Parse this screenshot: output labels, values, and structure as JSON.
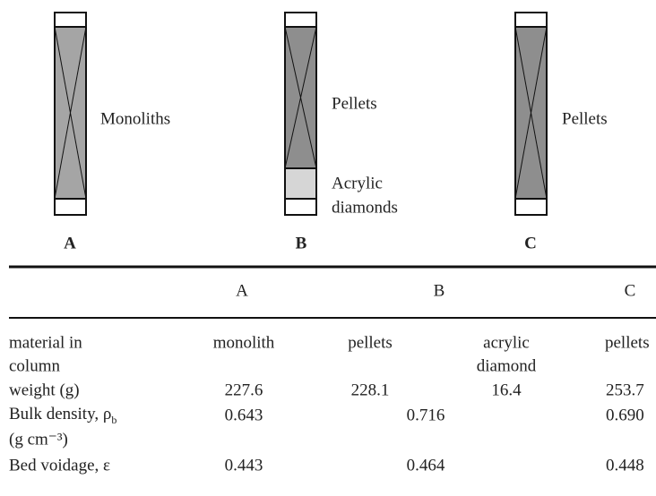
{
  "figure": {
    "columns": [
      {
        "label": "A",
        "annotations": [
          "Monoliths"
        ]
      },
      {
        "label": "B",
        "annotations": [
          "Pellets",
          "Acrylic",
          "diamonds"
        ]
      },
      {
        "label": "C",
        "annotations": [
          "Pellets"
        ]
      }
    ]
  },
  "table": {
    "header": [
      "A",
      "B",
      "C"
    ],
    "rows": [
      {
        "label": [
          "material in",
          "column"
        ],
        "cells": [
          "monolith",
          "pellets",
          "acrylic",
          "diamond",
          "pellets"
        ]
      },
      {
        "label": [
          "weight (g)"
        ],
        "cells": [
          "227.6",
          "228.1",
          "16.4",
          "253.7"
        ]
      },
      {
        "label": [
          "Bulk density, ρ",
          "b",
          "(g cm⁻³)"
        ],
        "cells": [
          "0.643",
          "0.716",
          "0.690"
        ]
      },
      {
        "label": [
          "Bed voidage, ε"
        ],
        "cells": [
          "0.443",
          "0.464",
          "0.448"
        ]
      }
    ]
  }
}
